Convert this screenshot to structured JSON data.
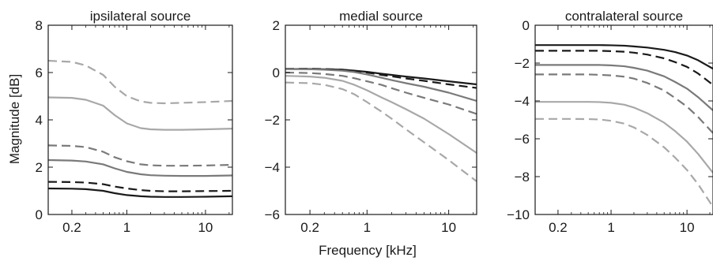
{
  "figure": {
    "ylabel": "Magnitude [dB]",
    "xlabel": "Frequency [kHz]"
  },
  "styles": {
    "black-solid": {
      "color": "#1a1a1a",
      "dash": false
    },
    "black-dashed": {
      "color": "#1a1a1a",
      "dash": true
    },
    "gray-solid": {
      "color": "#7a7a7a",
      "dash": false
    },
    "gray-dashed": {
      "color": "#7a7a7a",
      "dash": true
    },
    "lightgray-solid": {
      "color": "#a8a8a8",
      "dash": false
    },
    "lightgray-dashed": {
      "color": "#a8a8a8",
      "dash": true
    }
  },
  "chart_data": [
    {
      "type": "line",
      "title": "ipsilateral source",
      "x_scale": "log",
      "xlim": [
        0.1,
        22
      ],
      "ylim": [
        0,
        8
      ],
      "xticks": [
        0.2,
        1,
        10
      ],
      "xtick_labels": [
        "0.2",
        "1",
        "10"
      ],
      "yticks": [
        0,
        2,
        4,
        6,
        8
      ],
      "ytick_labels": [
        "0",
        "2",
        "4",
        "6",
        "8"
      ],
      "x": [
        0.1,
        0.2,
        0.3,
        0.5,
        0.7,
        1,
        1.5,
        2,
        3,
        5,
        10,
        22
      ],
      "series": [
        {
          "style": "lightgray-dashed",
          "values": [
            6.5,
            6.45,
            6.3,
            5.9,
            5.4,
            5.0,
            4.78,
            4.72,
            4.7,
            4.72,
            4.75,
            4.8
          ]
        },
        {
          "style": "lightgray-solid",
          "values": [
            4.95,
            4.93,
            4.85,
            4.6,
            4.2,
            3.85,
            3.65,
            3.6,
            3.58,
            3.58,
            3.6,
            3.63
          ]
        },
        {
          "style": "gray-dashed",
          "values": [
            2.92,
            2.9,
            2.85,
            2.65,
            2.42,
            2.25,
            2.12,
            2.08,
            2.06,
            2.06,
            2.07,
            2.1
          ]
        },
        {
          "style": "gray-solid",
          "values": [
            2.3,
            2.28,
            2.24,
            2.12,
            1.95,
            1.8,
            1.7,
            1.66,
            1.64,
            1.63,
            1.63,
            1.65
          ]
        },
        {
          "style": "black-dashed",
          "values": [
            1.38,
            1.37,
            1.35,
            1.28,
            1.18,
            1.1,
            1.03,
            1.0,
            0.98,
            0.98,
            0.99,
            1.0
          ]
        },
        {
          "style": "black-solid",
          "values": [
            1.1,
            1.09,
            1.07,
            1.0,
            0.9,
            0.82,
            0.77,
            0.75,
            0.74,
            0.74,
            0.75,
            0.77
          ]
        }
      ]
    },
    {
      "type": "line",
      "title": "medial source",
      "x_scale": "log",
      "xlim": [
        0.1,
        22
      ],
      "ylim": [
        -6,
        2
      ],
      "xticks": [
        0.2,
        1,
        10
      ],
      "xtick_labels": [
        "0.2",
        "1",
        "10"
      ],
      "yticks": [
        -6,
        -4,
        -2,
        0,
        2
      ],
      "ytick_labels": [
        "−6",
        "−4",
        "−2",
        "0",
        "2"
      ],
      "x": [
        0.1,
        0.2,
        0.3,
        0.5,
        0.7,
        1,
        1.5,
        2,
        3,
        5,
        10,
        22
      ],
      "series": [
        {
          "style": "black-solid",
          "values": [
            0.15,
            0.15,
            0.14,
            0.12,
            0.08,
            0.03,
            -0.05,
            -0.1,
            -0.17,
            -0.25,
            -0.37,
            -0.5
          ]
        },
        {
          "style": "black-dashed",
          "values": [
            0.16,
            0.16,
            0.15,
            0.12,
            0.07,
            0.0,
            -0.1,
            -0.16,
            -0.25,
            -0.35,
            -0.5,
            -0.65
          ]
        },
        {
          "style": "gray-solid",
          "values": [
            0.15,
            0.14,
            0.12,
            0.08,
            0.02,
            -0.08,
            -0.22,
            -0.32,
            -0.45,
            -0.6,
            -0.85,
            -1.2
          ]
        },
        {
          "style": "gray-dashed",
          "values": [
            0.0,
            -0.02,
            -0.06,
            -0.14,
            -0.24,
            -0.37,
            -0.52,
            -0.66,
            -0.85,
            -1.07,
            -1.35,
            -1.75
          ]
        },
        {
          "style": "lightgray-solid",
          "values": [
            -0.14,
            -0.17,
            -0.22,
            -0.35,
            -0.52,
            -0.75,
            -1.05,
            -1.25,
            -1.55,
            -1.95,
            -2.6,
            -3.4
          ]
        },
        {
          "style": "lightgray-dashed",
          "values": [
            -0.42,
            -0.45,
            -0.52,
            -0.7,
            -0.92,
            -1.25,
            -1.65,
            -1.95,
            -2.4,
            -2.95,
            -3.7,
            -4.6
          ]
        }
      ]
    },
    {
      "type": "line",
      "title": "contralateral source",
      "x_scale": "log",
      "xlim": [
        0.1,
        22
      ],
      "ylim": [
        -10,
        0
      ],
      "xticks": [
        0.2,
        1,
        10
      ],
      "xtick_labels": [
        "0.2",
        "1",
        "10"
      ],
      "yticks": [
        -10,
        -8,
        -6,
        -4,
        -2,
        0
      ],
      "ytick_labels": [
        "−10",
        "−8",
        "−6",
        "−4",
        "−2",
        "0"
      ],
      "x": [
        0.1,
        0.2,
        0.3,
        0.5,
        0.7,
        1,
        1.5,
        2,
        3,
        5,
        7,
        10,
        14,
        22
      ],
      "series": [
        {
          "style": "black-solid",
          "values": [
            -1.05,
            -1.05,
            -1.05,
            -1.05,
            -1.05,
            -1.06,
            -1.08,
            -1.12,
            -1.18,
            -1.3,
            -1.42,
            -1.6,
            -1.85,
            -2.3
          ]
        },
        {
          "style": "black-dashed",
          "values": [
            -1.35,
            -1.35,
            -1.35,
            -1.35,
            -1.35,
            -1.37,
            -1.4,
            -1.45,
            -1.55,
            -1.75,
            -1.95,
            -2.2,
            -2.55,
            -3.15
          ]
        },
        {
          "style": "gray-solid",
          "values": [
            -2.1,
            -2.1,
            -2.1,
            -2.1,
            -2.1,
            -2.12,
            -2.17,
            -2.25,
            -2.4,
            -2.7,
            -3.0,
            -3.35,
            -3.8,
            -4.5
          ]
        },
        {
          "style": "gray-dashed",
          "values": [
            -2.6,
            -2.6,
            -2.6,
            -2.6,
            -2.62,
            -2.65,
            -2.72,
            -2.82,
            -3.05,
            -3.45,
            -3.85,
            -4.3,
            -4.85,
            -5.7
          ]
        },
        {
          "style": "lightgray-solid",
          "values": [
            -4.05,
            -4.05,
            -4.05,
            -4.05,
            -4.06,
            -4.1,
            -4.2,
            -4.35,
            -4.65,
            -5.15,
            -5.6,
            -6.15,
            -6.8,
            -7.8
          ]
        },
        {
          "style": "lightgray-dashed",
          "values": [
            -4.95,
            -4.95,
            -4.95,
            -4.96,
            -4.98,
            -5.05,
            -5.2,
            -5.4,
            -5.8,
            -6.45,
            -7.0,
            -7.65,
            -8.4,
            -9.6
          ]
        }
      ]
    }
  ]
}
